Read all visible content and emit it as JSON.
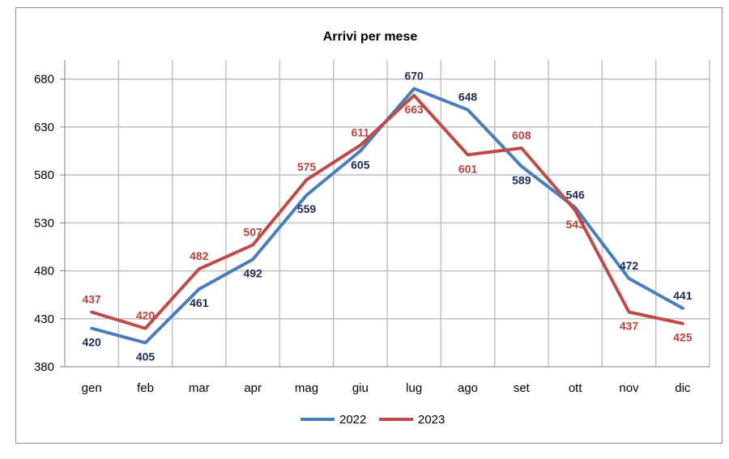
{
  "chart_data": {
    "type": "line",
    "title": "Arrivi per mese",
    "xlabel": "",
    "ylabel": "",
    "categories": [
      "gen",
      "feb",
      "mar",
      "apr",
      "mag",
      "giu",
      "lug",
      "ago",
      "set",
      "ott",
      "nov",
      "dic"
    ],
    "ylim": [
      380,
      700
    ],
    "yticks": [
      380,
      430,
      480,
      530,
      580,
      630,
      680
    ],
    "grid": true,
    "legend_position": "bottom",
    "series": [
      {
        "name": "2022",
        "color": "#4a7ebb",
        "label_color": "#1f2a52",
        "values": [
          420,
          405,
          461,
          492,
          559,
          605,
          670,
          648,
          589,
          546,
          472,
          441
        ]
      },
      {
        "name": "2023",
        "color": "#be4b48",
        "label_color": "#b8413c",
        "values": [
          437,
          420,
          482,
          507,
          575,
          611,
          663,
          601,
          608,
          543,
          437,
          425
        ]
      }
    ]
  }
}
